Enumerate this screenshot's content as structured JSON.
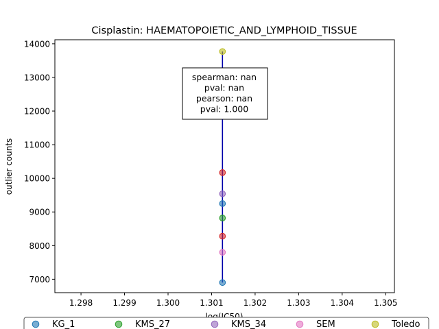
{
  "chart_data": {
    "type": "scatter",
    "title": "Cisplastin: HAEMATOPOIETIC_AND_LYMPHOID_TISSUE",
    "xlabel": "log(IC50)",
    "ylabel": "outlier counts",
    "xlim": [
      1.2974,
      1.3052
    ],
    "ylim": [
      6600,
      14120
    ],
    "xticks": [
      1.298,
      1.299,
      1.3,
      1.301,
      1.302,
      1.303,
      1.304,
      1.305
    ],
    "xtick_labels": [
      "1.298",
      "1.299",
      "1.300",
      "1.301",
      "1.302",
      "1.303",
      "1.304",
      "1.305"
    ],
    "yticks": [
      7000,
      8000,
      9000,
      10000,
      11000,
      12000,
      13000,
      14000
    ],
    "ytick_labels": [
      "7000",
      "8000",
      "9000",
      "10000",
      "11000",
      "12000",
      "13000",
      "14000"
    ],
    "grid": false,
    "regression_line": {
      "x": [
        1.30125,
        1.30125
      ],
      "y": [
        6900,
        13770
      ],
      "color": "#0000aa"
    },
    "annotation": [
      "spearman: nan",
      "pval: nan",
      "pearson: nan",
      "pval: 1.000"
    ],
    "legend_position": "bottom",
    "points": [
      {
        "x": 1.30125,
        "y": 6900,
        "color": "#1f77b4"
      },
      {
        "x": 1.30125,
        "y": 7800,
        "color": "#e377c2"
      },
      {
        "x": 1.30125,
        "y": 8280,
        "color": "#d62728"
      },
      {
        "x": 1.30125,
        "y": 8820,
        "color": "#2ca02c"
      },
      {
        "x": 1.30125,
        "y": 9250,
        "color": "#1f77b4"
      },
      {
        "x": 1.30125,
        "y": 9540,
        "color": "#9467bd"
      },
      {
        "x": 1.30125,
        "y": 10170,
        "color": "#d62728"
      },
      {
        "x": 1.30125,
        "y": 13770,
        "color": "#bcbd22"
      }
    ],
    "legend": [
      {
        "name": "KG_1",
        "color": "#1f77b4"
      },
      {
        "name": "KMS_27",
        "color": "#2ca02c"
      },
      {
        "name": "KMS_34",
        "color": "#9467bd"
      },
      {
        "name": "SEM",
        "color": "#e377c2"
      },
      {
        "name": "Toledo",
        "color": "#bcbd22"
      }
    ]
  }
}
